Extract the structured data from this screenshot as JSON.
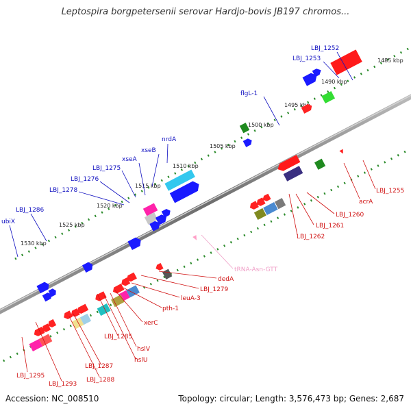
{
  "title": "Leptospira borgpetersenii serovar Hardjo-bovis JB197 chromos...",
  "accession": "Accession: NC_008510",
  "topology": "Topology: circular; Length: 3,576,473 bp; Genes: 2,687",
  "colors": {
    "backbone": "#7a7a7a",
    "forward_label": "#1010c0",
    "reverse_label": "#d01010",
    "rna_label": "#f0a0c8",
    "tick": "#2a8a2a"
  },
  "kbp_labels": [
    "1485 kbp",
    "1490 kbp",
    "1495 kbp",
    "1500 kbp",
    "1505 kbp",
    "1510 kbp",
    "1515 kbp",
    "1520 kbp",
    "1525 kbp",
    "1530 kbp"
  ],
  "forward_genes": [
    "LBJ_1252",
    "LBJ_1253",
    "flgL-1",
    "nrdA",
    "xseB",
    "xseA",
    "LBJ_1275",
    "LBJ_1276",
    "LBJ_1278",
    "LBJ_1286",
    "ubiX"
  ],
  "reverse_genes": [
    "LBJ_1255",
    "acrA",
    "LBJ_1260",
    "LBJ_1261",
    "LBJ_1262",
    "dedA",
    "LBJ_1279",
    "leuA-3",
    "pth-1",
    "xerC",
    "hslV",
    "hslU",
    "LBJ_1285",
    "LBJ_1287",
    "LBJ_1288",
    "LBJ_1293",
    "LBJ_1295"
  ],
  "rna_genes": [
    "tRNA-Asn-GTT"
  ]
}
